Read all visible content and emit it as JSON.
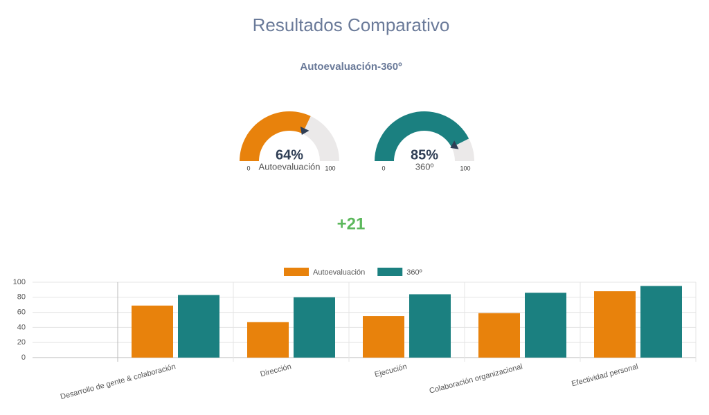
{
  "header": {
    "title": "Resultados Comparativo",
    "subtitle": "Autoevaluación-360º",
    "difference": "+21"
  },
  "chart_data": [
    {
      "type": "gauge",
      "value": 64,
      "value_label": "64%",
      "label": "Autoevaluación",
      "lim": [
        0,
        100
      ],
      "color": "#e8820c"
    },
    {
      "type": "gauge",
      "value": 85,
      "value_label": "85%",
      "label": "360º",
      "lim": [
        0,
        100
      ],
      "color": "#1b8080"
    },
    {
      "type": "bar",
      "categories": [
        "Desarrollo de gente & colaboración",
        "Dirección",
        "Ejecución",
        "Colaboración organizacional",
        "Efectividad personal"
      ],
      "series": [
        {
          "name": "Autoevaluación",
          "color": "#e8820c",
          "values": [
            69,
            47,
            55,
            59,
            88
          ]
        },
        {
          "name": "360º",
          "color": "#1b8080",
          "values": [
            83,
            80,
            84,
            86,
            95
          ]
        }
      ],
      "ylim": [
        0,
        100
      ],
      "yticks": [
        0,
        20,
        40,
        60,
        80,
        100
      ],
      "grid": true
    }
  ]
}
